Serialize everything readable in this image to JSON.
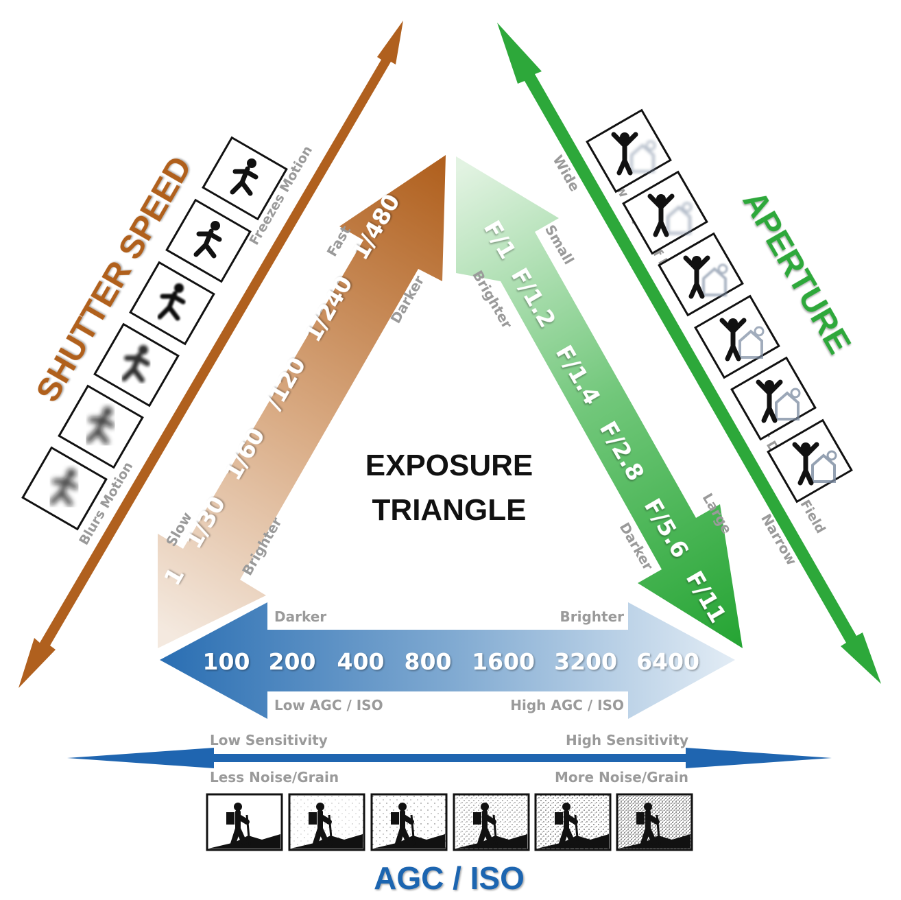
{
  "center_title": {
    "line1": "EXPOSURE",
    "line2": "TRIANGLE"
  },
  "shutter": {
    "title": "SHUTTER SPEED",
    "values": [
      "1",
      "1/30",
      "1/60",
      "/120",
      "1/240",
      "1/480"
    ],
    "slow_label": "Slow",
    "fast_label": "Fast",
    "brighter_label": "Brighter",
    "darker_label": "Darker",
    "blurs_label": "Blurs Motion",
    "freezes_label": "Freezes Motion",
    "colors": {
      "main": "#b0601e",
      "light": "#f1e2d4"
    }
  },
  "aperture": {
    "title": "APERTURE",
    "values": [
      "F/1",
      "F/1.2",
      "F/1.4",
      "F/2.8",
      "F/5.6",
      "F/11"
    ],
    "small_label": "Small",
    "large_label": "Large",
    "brighter_label": "Brighter",
    "darker_label": "Darker",
    "wide_label": "Wide",
    "narrow_label": "Narrow",
    "shallow_label": "Shallow Depth of Field",
    "larger_label": "Larger Depth of Field",
    "colors": {
      "main": "#2da83a",
      "light": "#d9efd9"
    }
  },
  "iso": {
    "title": "AGC / ISO",
    "values": [
      "100",
      "200",
      "400",
      "800",
      "1600",
      "3200",
      "6400"
    ],
    "darker_label": "Darker",
    "brighter_label": "Brighter",
    "low_agc_label": "Low AGC / ISO",
    "high_agc_label": "High AGC / ISO",
    "low_sens_label": "Low Sensitivity",
    "high_sens_label": "High Sensitivity",
    "less_noise_label": "Less Noise/Grain",
    "more_noise_label": "More Noise/Grain",
    "colors": {
      "main": "#2b6fb3",
      "light": "#dbe7f2"
    }
  },
  "icons": {
    "shutter_panels": "running-figure-icon",
    "aperture_panels": "waving-person-icon",
    "iso_panels": "hiker-icon"
  }
}
